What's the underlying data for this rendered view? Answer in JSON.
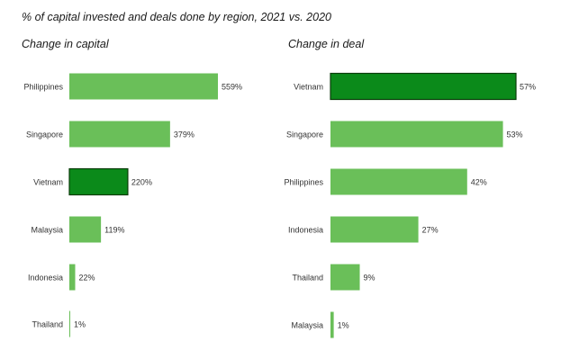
{
  "title": "% of capital invested and deals done by region, 2021 vs. 2020",
  "colors": {
    "bar": "#6abf59",
    "highlight": "#0b8a1a",
    "highlight_stroke": "#0a3d0a",
    "text": "#333333"
  },
  "chart_data": [
    {
      "type": "bar",
      "orientation": "horizontal",
      "title": "Change in capital",
      "categories": [
        "Philippines",
        "Singapore",
        "Vietnam",
        "Malaysia",
        "Indonesia",
        "Thailand"
      ],
      "values": [
        559,
        379,
        220,
        119,
        22,
        1
      ],
      "value_labels": [
        "559%",
        "379%",
        "220%",
        "119%",
        "22%",
        "1%"
      ],
      "highlight": "Vietnam",
      "grid": false,
      "legend": "none"
    },
    {
      "type": "bar",
      "orientation": "horizontal",
      "title": "Change in deal",
      "categories": [
        "Vietnam",
        "Singapore",
        "Philippines",
        "Indonesia",
        "Thailand",
        "Malaysia"
      ],
      "values": [
        57,
        53,
        42,
        27,
        9,
        1
      ],
      "value_labels": [
        "57%",
        "53%",
        "42%",
        "27%",
        "9%",
        "1%"
      ],
      "highlight": "Vietnam",
      "grid": false,
      "legend": "none"
    }
  ]
}
